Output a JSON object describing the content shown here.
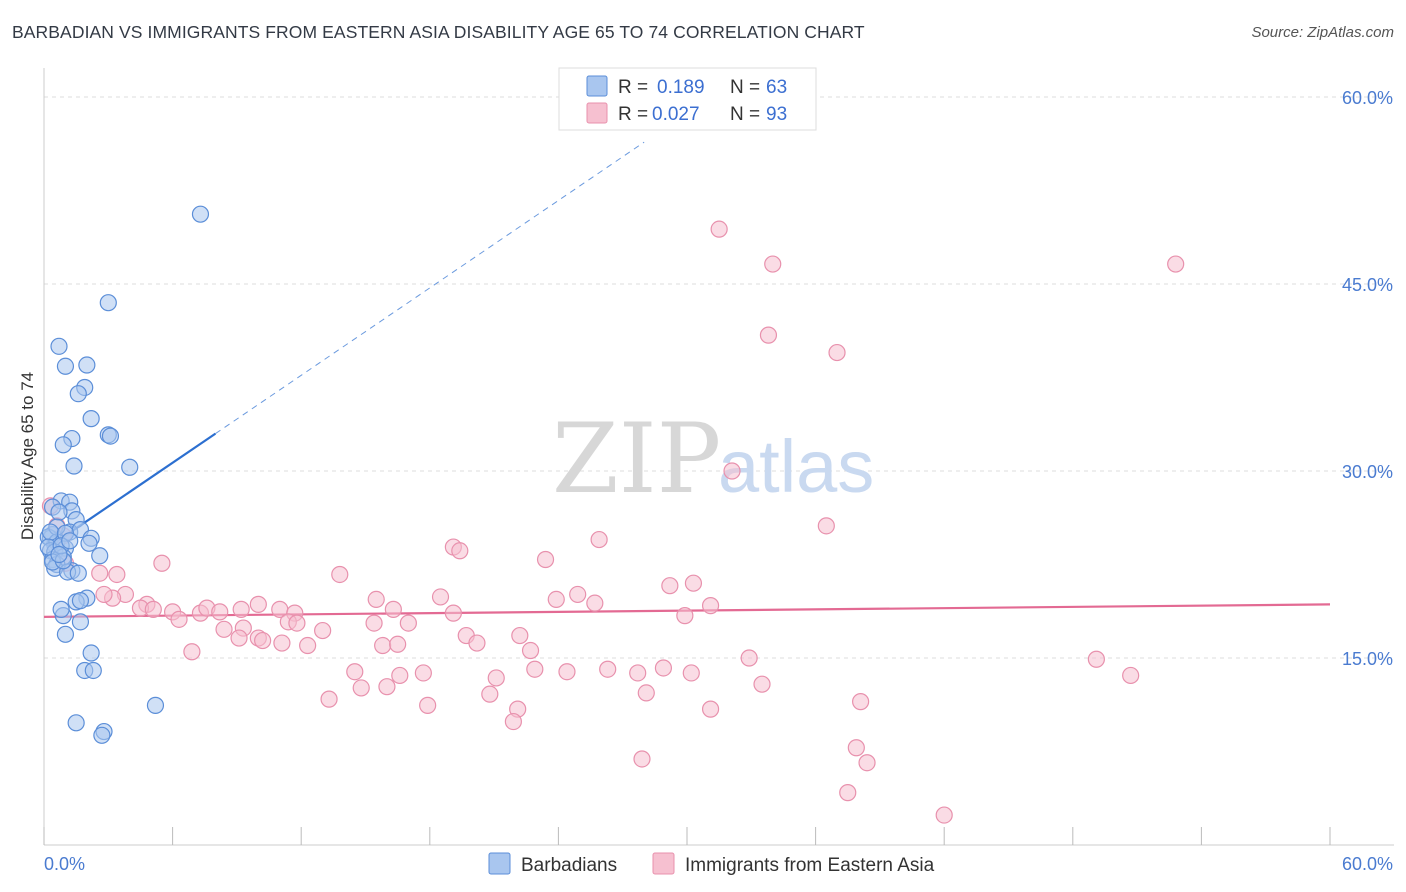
{
  "title": "BARBADIAN VS IMMIGRANTS FROM EASTERN ASIA DISABILITY AGE 65 TO 74 CORRELATION CHART",
  "source": "Source: ZipAtlas.com",
  "watermark": {
    "zip": "ZIP",
    "atlas": "atlas"
  },
  "colors": {
    "blue_fill": "#a9c6ef",
    "blue_stroke": "#5b8ed8",
    "blue_line": "#2c6fd0",
    "pink_fill": "#f6c0d0",
    "pink_stroke": "#e891ad",
    "pink_line": "#e36a93",
    "grid": "#dddddd",
    "axis_text": "#4a7bd0"
  },
  "legend_top": {
    "r_label": "R =",
    "n_label": "N =",
    "rows": [
      {
        "r": "0.189",
        "n": "63"
      },
      {
        "r": "0.027",
        "n": "93"
      }
    ]
  },
  "legend_bottom": [
    "Barbadians",
    "Immigrants from Eastern Asia"
  ],
  "chart_data": {
    "type": "scatter",
    "title": "BARBADIAN VS IMMIGRANTS FROM EASTERN ASIA DISABILITY AGE 65 TO 74 CORRELATION CHART",
    "xlabel": "",
    "ylabel": "Disability Age 65 to 74",
    "xlim": [
      0,
      60
    ],
    "ylim": [
      0,
      60
    ],
    "x_tick_labels": [
      "0.0%",
      "60.0%"
    ],
    "y_ticks": [
      15,
      30,
      45,
      60
    ],
    "y_tick_labels": [
      "15.0%",
      "30.0%",
      "45.0%",
      "60.0%"
    ],
    "grid": true,
    "legend_position": "top-center",
    "series": [
      {
        "name": "Barbadians",
        "r": 0.189,
        "n": 63,
        "trend": {
          "x0": 0.3,
          "y0": 24.0,
          "x1": 8.0,
          "y1": 33.0,
          "dashed_to_x": 28.0
        },
        "points": [
          [
            7.3,
            50.6
          ],
          [
            3.0,
            43.5
          ],
          [
            0.7,
            40.0
          ],
          [
            2.0,
            38.5
          ],
          [
            1.0,
            38.4
          ],
          [
            1.9,
            36.7
          ],
          [
            1.6,
            36.2
          ],
          [
            2.2,
            34.2
          ],
          [
            3.0,
            32.9
          ],
          [
            3.1,
            32.8
          ],
          [
            1.3,
            32.6
          ],
          [
            0.9,
            32.1
          ],
          [
            1.4,
            30.4
          ],
          [
            4.0,
            30.3
          ],
          [
            0.8,
            27.6
          ],
          [
            1.2,
            27.5
          ],
          [
            0.4,
            27.1
          ],
          [
            1.3,
            26.8
          ],
          [
            0.7,
            26.7
          ],
          [
            1.5,
            26.1
          ],
          [
            0.4,
            24.9
          ],
          [
            1.2,
            25.1
          ],
          [
            1.7,
            25.3
          ],
          [
            2.2,
            24.6
          ],
          [
            0.3,
            24.6
          ],
          [
            0.5,
            24.1
          ],
          [
            0.2,
            24.7
          ],
          [
            0.6,
            24.3
          ],
          [
            0.3,
            23.6
          ],
          [
            1.0,
            23.8
          ],
          [
            2.1,
            24.2
          ],
          [
            0.5,
            23.5
          ],
          [
            0.9,
            23.1
          ],
          [
            0.4,
            22.9
          ],
          [
            0.6,
            22.5
          ],
          [
            0.5,
            22.2
          ],
          [
            2.6,
            23.2
          ],
          [
            1.3,
            22.0
          ],
          [
            1.1,
            21.9
          ],
          [
            1.6,
            21.8
          ],
          [
            0.4,
            22.7
          ],
          [
            0.9,
            22.8
          ],
          [
            2.0,
            19.8
          ],
          [
            1.5,
            19.5
          ],
          [
            1.7,
            19.6
          ],
          [
            0.9,
            18.4
          ],
          [
            0.8,
            18.9
          ],
          [
            1.7,
            17.9
          ],
          [
            1.0,
            16.9
          ],
          [
            2.2,
            15.4
          ],
          [
            1.9,
            14.0
          ],
          [
            2.3,
            14.0
          ],
          [
            5.2,
            11.2
          ],
          [
            1.5,
            9.8
          ],
          [
            2.8,
            9.1
          ],
          [
            2.7,
            8.8
          ],
          [
            0.6,
            25.5
          ],
          [
            0.3,
            25.1
          ],
          [
            1.0,
            25.0
          ],
          [
            0.2,
            23.9
          ],
          [
            0.8,
            24.0
          ],
          [
            1.2,
            24.4
          ],
          [
            0.7,
            23.3
          ]
        ]
      },
      {
        "name": "Immigrants from Eastern Asia",
        "r": 0.027,
        "n": 93,
        "trend": {
          "x0": 0.0,
          "y0": 18.3,
          "x1": 60.0,
          "y1": 19.3
        },
        "points": [
          [
            31.5,
            49.4
          ],
          [
            34.0,
            46.6
          ],
          [
            52.8,
            46.6
          ],
          [
            33.8,
            40.9
          ],
          [
            37.0,
            39.5
          ],
          [
            32.1,
            30.0
          ],
          [
            36.5,
            25.6
          ],
          [
            0.3,
            27.2
          ],
          [
            0.6,
            25.6
          ],
          [
            0.9,
            24.8
          ],
          [
            19.1,
            23.9
          ],
          [
            19.4,
            23.6
          ],
          [
            25.9,
            24.5
          ],
          [
            23.4,
            22.9
          ],
          [
            5.5,
            22.6
          ],
          [
            13.8,
            21.7
          ],
          [
            3.4,
            21.7
          ],
          [
            2.6,
            21.8
          ],
          [
            1.0,
            22.6
          ],
          [
            30.3,
            21.0
          ],
          [
            29.2,
            20.8
          ],
          [
            24.9,
            20.1
          ],
          [
            23.9,
            19.7
          ],
          [
            18.5,
            19.9
          ],
          [
            15.5,
            19.7
          ],
          [
            3.8,
            20.1
          ],
          [
            3.2,
            19.8
          ],
          [
            4.8,
            19.3
          ],
          [
            4.5,
            19.0
          ],
          [
            5.1,
            18.9
          ],
          [
            6.0,
            18.7
          ],
          [
            7.3,
            18.6
          ],
          [
            7.6,
            19.0
          ],
          [
            10.0,
            19.3
          ],
          [
            11.0,
            18.9
          ],
          [
            11.7,
            18.6
          ],
          [
            16.3,
            18.9
          ],
          [
            19.1,
            18.6
          ],
          [
            25.7,
            19.4
          ],
          [
            29.9,
            18.4
          ],
          [
            31.1,
            19.2
          ],
          [
            6.3,
            18.1
          ],
          [
            8.2,
            18.7
          ],
          [
            9.2,
            18.9
          ],
          [
            11.4,
            17.9
          ],
          [
            11.8,
            17.8
          ],
          [
            13.0,
            17.2
          ],
          [
            15.4,
            17.8
          ],
          [
            17.0,
            17.8
          ],
          [
            8.4,
            17.3
          ],
          [
            9.3,
            17.4
          ],
          [
            9.1,
            16.6
          ],
          [
            10.0,
            16.6
          ],
          [
            10.2,
            16.4
          ],
          [
            11.1,
            16.2
          ],
          [
            12.3,
            16.0
          ],
          [
            15.8,
            16.0
          ],
          [
            16.5,
            16.1
          ],
          [
            19.7,
            16.8
          ],
          [
            20.2,
            16.2
          ],
          [
            22.2,
            16.8
          ],
          [
            22.7,
            15.6
          ],
          [
            6.9,
            15.5
          ],
          [
            14.5,
            13.9
          ],
          [
            16.6,
            13.6
          ],
          [
            17.7,
            13.8
          ],
          [
            21.1,
            13.4
          ],
          [
            22.9,
            14.1
          ],
          [
            24.4,
            13.9
          ],
          [
            26.3,
            14.1
          ],
          [
            27.7,
            13.8
          ],
          [
            28.9,
            14.2
          ],
          [
            30.2,
            13.8
          ],
          [
            32.9,
            15.0
          ],
          [
            33.5,
            12.9
          ],
          [
            14.8,
            12.6
          ],
          [
            16.0,
            12.7
          ],
          [
            13.3,
            11.7
          ],
          [
            20.8,
            12.1
          ],
          [
            17.9,
            11.2
          ],
          [
            22.1,
            10.9
          ],
          [
            28.1,
            12.2
          ],
          [
            31.1,
            10.9
          ],
          [
            21.9,
            9.9
          ],
          [
            38.1,
            11.5
          ],
          [
            37.9,
            7.8
          ],
          [
            38.4,
            6.6
          ],
          [
            27.9,
            6.9
          ],
          [
            37.5,
            4.2
          ],
          [
            42.0,
            2.4
          ],
          [
            50.7,
            13.6
          ],
          [
            49.1,
            14.9
          ],
          [
            2.8,
            20.1
          ]
        ]
      }
    ]
  }
}
